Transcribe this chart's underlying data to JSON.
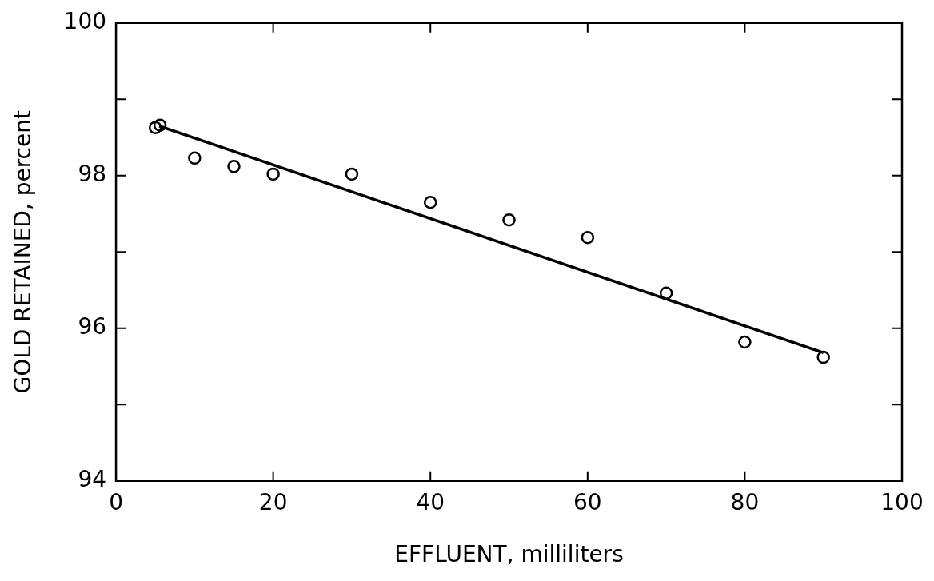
{
  "chart_data": {
    "type": "scatter",
    "xlabel": "EFFLUENT, milliliters",
    "ylabel": "GOLD RETAINED, percent",
    "xlim": [
      0,
      100
    ],
    "xticks": [
      0,
      20,
      40,
      60,
      80,
      100
    ],
    "ylim": [
      94,
      100
    ],
    "yticks": [
      94,
      {
        "value": 95,
        "label": null
      },
      96,
      {
        "value": 97,
        "label": null
      },
      98,
      {
        "value": 99,
        "label": null
      },
      100
    ],
    "grid": false,
    "legend": false,
    "marker": "circle",
    "series": [
      {
        "color": "#000000",
        "x": [
          5,
          5.6,
          10,
          15,
          20,
          30,
          40,
          50,
          60,
          70,
          80,
          90
        ],
        "values": [
          98.63,
          98.66,
          98.23,
          98.12,
          98.02,
          98.02,
          97.65,
          97.42,
          97.19,
          96.46,
          95.82,
          95.62
        ]
      },
      {
        "type": "line",
        "color": "#000000",
        "x": [
          5.5,
          90
        ],
        "values": [
          98.65,
          95.68
        ],
        "line_style": "solid",
        "marker": "none"
      }
    ]
  }
}
